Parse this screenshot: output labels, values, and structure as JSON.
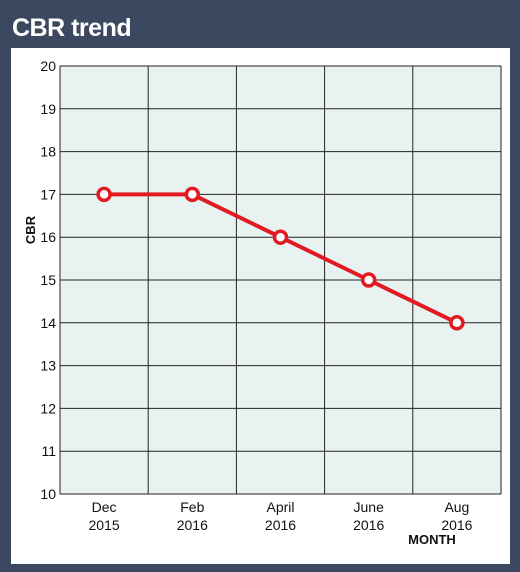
{
  "header": {
    "title": "CBR trend"
  },
  "chart_data": {
    "type": "line",
    "title": "CBR trend",
    "ylabel": "CBR",
    "xlabel": "MONTH",
    "ylim": [
      10,
      20
    ],
    "yticks": [
      10,
      11,
      12,
      13,
      14,
      15,
      16,
      17,
      18,
      19,
      20
    ],
    "categories": [
      [
        "Dec",
        "2015"
      ],
      [
        "Feb",
        "2016"
      ],
      [
        "April",
        "2016"
      ],
      [
        "June",
        "2016"
      ],
      [
        "Aug",
        "2016"
      ]
    ],
    "values": [
      17,
      17,
      16,
      15,
      14
    ],
    "grid": true,
    "colors": {
      "line": "#e21b22",
      "plot_bg": "#e8f3f1",
      "frame": "#3b4860"
    }
  }
}
